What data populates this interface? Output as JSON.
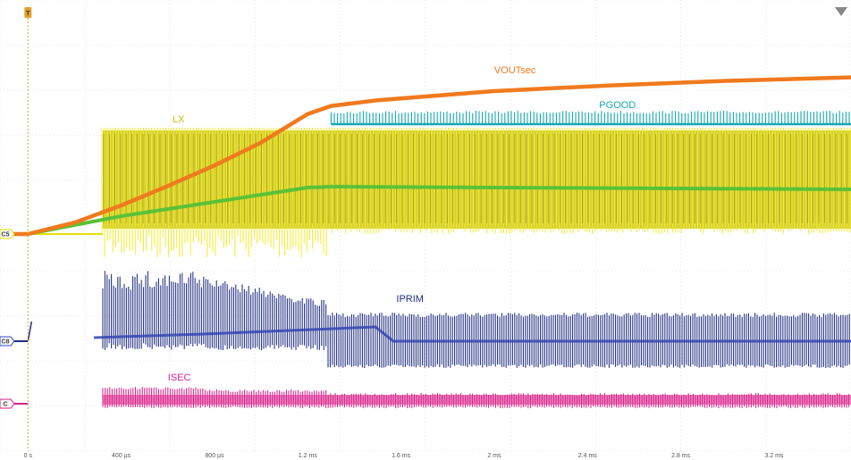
{
  "chart_data": {
    "type": "line",
    "title": "",
    "xlabel": "",
    "ylabel": "",
    "x_unit": "ms",
    "xlim": [
      -0.12,
      3.53
    ],
    "x_tick_values": [
      0,
      0.4,
      0.8,
      1.2,
      1.6,
      2.0,
      2.4,
      2.8,
      3.2
    ],
    "x_tick_labels": [
      "0 s",
      "400 µs",
      "800 µs",
      "1.2 ms",
      "1.6 ms",
      "2 ms",
      "2.4 ms",
      "2.8 ms",
      "3.2 ms"
    ],
    "grid": true,
    "trigger_marker": "T",
    "channel_markers": [
      {
        "text": "C5",
        "color": "#e8e000"
      },
      {
        "text": "C8",
        "color": "#3350cc"
      },
      {
        "text": "C",
        "color": "#e0218a"
      }
    ],
    "series": [
      {
        "name": "VOUTsec",
        "color": "#f07a1e",
        "x": [
          -0.12,
          0.0,
          0.2,
          0.4,
          0.6,
          0.8,
          1.0,
          1.2,
          1.3,
          1.5,
          2.0,
          2.5,
          3.0,
          3.53
        ],
        "y": [
          0.0,
          0.0,
          0.1,
          0.25,
          0.42,
          0.6,
          0.8,
          1.05,
          1.12,
          1.17,
          1.25,
          1.3,
          1.34,
          1.37
        ]
      },
      {
        "name": "",
        "color": "#59c237",
        "x": [
          -0.12,
          0.0,
          0.4,
          0.8,
          1.2,
          1.3,
          3.53
        ],
        "y": [
          0.0,
          0.0,
          0.2,
          0.36,
          0.52,
          0.53,
          0.5
        ]
      },
      {
        "name": "PGOOD",
        "color": "#17a8b0",
        "x": [
          1.3,
          3.53
        ],
        "y": [
          1.0,
          1.0
        ]
      },
      {
        "name": "LX",
        "color": "#c9c200",
        "x": [
          0.05,
          3.53
        ],
        "y": [
          1.0,
          1.0
        ]
      },
      {
        "name": "IPRIM",
        "color": "#1f2d80",
        "x": [
          0.05,
          0.5,
          1.2,
          1.28,
          3.53
        ],
        "y": [
          0.6,
          0.55,
          0.45,
          0.25,
          0.25
        ]
      },
      {
        "name": "ISEC",
        "color": "#d8218a",
        "x": [
          0.05,
          0.5,
          1.2,
          3.53
        ],
        "y": [
          0.08,
          0.07,
          0.06,
          0.05
        ]
      }
    ]
  }
}
